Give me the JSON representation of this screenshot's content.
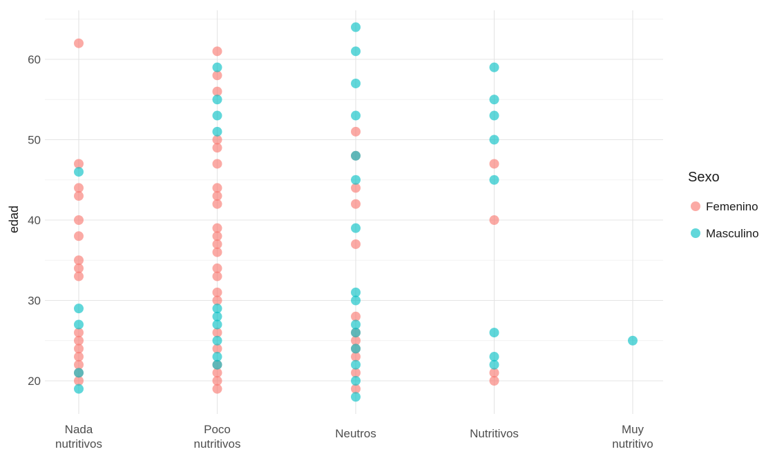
{
  "chart_data": {
    "type": "scatter",
    "title": "",
    "xlabel": "",
    "ylabel": "edad",
    "ylim": [
      16,
      66
    ],
    "yticks": [
      20,
      30,
      40,
      50,
      60
    ],
    "grid": true,
    "legend": {
      "title": "Sexo",
      "position": "right"
    },
    "categories": [
      [
        "Nada",
        "nutritivos"
      ],
      [
        "Poco",
        "nutritivos"
      ],
      [
        "Neutros"
      ],
      [
        "Nutritivos"
      ],
      [
        "Muy",
        "nutritivo"
      ]
    ],
    "series": [
      {
        "name": "Femenino",
        "color": "#F8766D",
        "points": [
          [
            0,
            62
          ],
          [
            0,
            47
          ],
          [
            0,
            44
          ],
          [
            0,
            43
          ],
          [
            0,
            40
          ],
          [
            0,
            38
          ],
          [
            0,
            35
          ],
          [
            0,
            34
          ],
          [
            0,
            33
          ],
          [
            0,
            26
          ],
          [
            0,
            25
          ],
          [
            0,
            24
          ],
          [
            0,
            23
          ],
          [
            0,
            22
          ],
          [
            0,
            21
          ],
          [
            0,
            20
          ],
          [
            1,
            61
          ],
          [
            1,
            58
          ],
          [
            1,
            56
          ],
          [
            1,
            50
          ],
          [
            1,
            49
          ],
          [
            1,
            47
          ],
          [
            1,
            44
          ],
          [
            1,
            43
          ],
          [
            1,
            42
          ],
          [
            1,
            39
          ],
          [
            1,
            38
          ],
          [
            1,
            37
          ],
          [
            1,
            36
          ],
          [
            1,
            34
          ],
          [
            1,
            33
          ],
          [
            1,
            31
          ],
          [
            1,
            30
          ],
          [
            1,
            26
          ],
          [
            1,
            24
          ],
          [
            1,
            22
          ],
          [
            1,
            21
          ],
          [
            1,
            20
          ],
          [
            1,
            19
          ],
          [
            2,
            51
          ],
          [
            2,
            48
          ],
          [
            2,
            44
          ],
          [
            2,
            42
          ],
          [
            2,
            37
          ],
          [
            2,
            28
          ],
          [
            2,
            26
          ],
          [
            2,
            25
          ],
          [
            2,
            24
          ],
          [
            2,
            23
          ],
          [
            2,
            21
          ],
          [
            2,
            19
          ],
          [
            3,
            47
          ],
          [
            3,
            40
          ],
          [
            3,
            21
          ],
          [
            3,
            20
          ]
        ]
      },
      {
        "name": "Masculino",
        "color": "#00BFC4",
        "points": [
          [
            0,
            46
          ],
          [
            0,
            29
          ],
          [
            0,
            27
          ],
          [
            0,
            21
          ],
          [
            0,
            19
          ],
          [
            1,
            59
          ],
          [
            1,
            55
          ],
          [
            1,
            53
          ],
          [
            1,
            51
          ],
          [
            1,
            29
          ],
          [
            1,
            28
          ],
          [
            1,
            27
          ],
          [
            1,
            25
          ],
          [
            1,
            23
          ],
          [
            1,
            22
          ],
          [
            2,
            64
          ],
          [
            2,
            61
          ],
          [
            2,
            57
          ],
          [
            2,
            53
          ],
          [
            2,
            48
          ],
          [
            2,
            45
          ],
          [
            2,
            39
          ],
          [
            2,
            31
          ],
          [
            2,
            30
          ],
          [
            2,
            27
          ],
          [
            2,
            26
          ],
          [
            2,
            24
          ],
          [
            2,
            22
          ],
          [
            2,
            20
          ],
          [
            2,
            18
          ],
          [
            3,
            59
          ],
          [
            3,
            55
          ],
          [
            3,
            53
          ],
          [
            3,
            50
          ],
          [
            3,
            45
          ],
          [
            3,
            26
          ],
          [
            3,
            23
          ],
          [
            3,
            22
          ],
          [
            4,
            25
          ]
        ]
      }
    ]
  }
}
